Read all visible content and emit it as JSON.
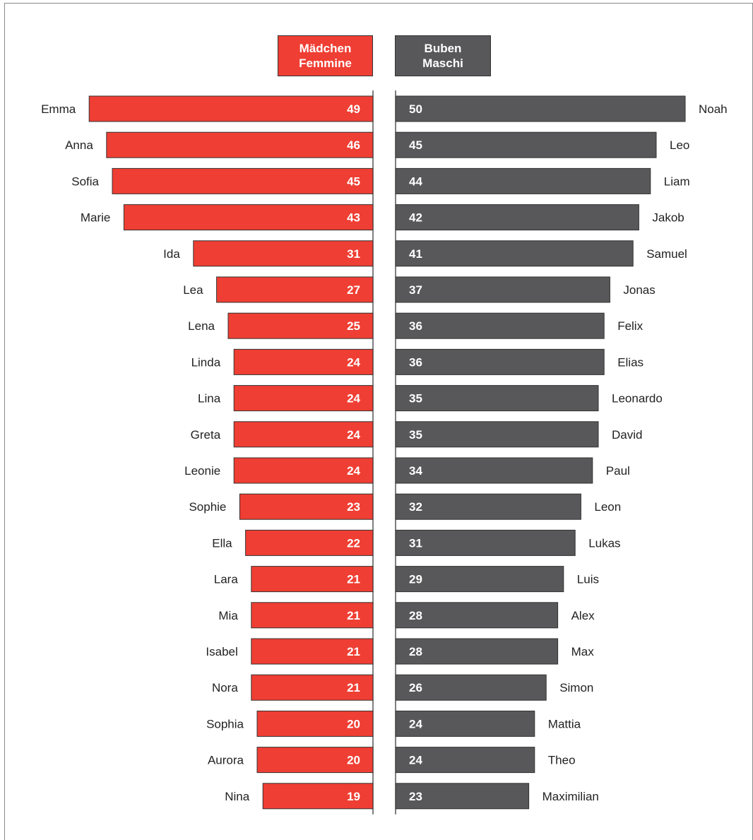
{
  "legend": {
    "girls": [
      "Mädchen",
      "Femmine"
    ],
    "boys": [
      "Buben",
      "Maschi"
    ]
  },
  "colors": {
    "girls": "#ef3e33",
    "boys": "#58585a",
    "axis": "#555555"
  },
  "chart_data": {
    "type": "bar",
    "orientation": "horizontal-butterfly",
    "series": [
      {
        "name": "Mädchen / Femmine",
        "side": "left",
        "names": [
          "Emma",
          "Anna",
          "Sofia",
          "Marie",
          "Ida",
          "Lea",
          "Lena",
          "Linda",
          "Lina",
          "Greta",
          "Leonie",
          "Sophie",
          "Ella",
          "Lara",
          "Mia",
          "Isabel",
          "Nora",
          "Sophia",
          "Aurora",
          "Nina"
        ],
        "values": [
          49,
          46,
          45,
          43,
          31,
          27,
          25,
          24,
          24,
          24,
          24,
          23,
          22,
          21,
          21,
          21,
          21,
          20,
          20,
          19
        ]
      },
      {
        "name": "Buben / Maschi",
        "side": "right",
        "names": [
          "Noah",
          "Leo",
          "Liam",
          "Jakob",
          "Samuel",
          "Jonas",
          "Felix",
          "Elias",
          "Leonardo",
          "David",
          "Paul",
          "Leon",
          "Lukas",
          "Luis",
          "Alex",
          "Max",
          "Simon",
          "Mattia",
          "Theo",
          "Maximilian"
        ],
        "values": [
          50,
          45,
          44,
          42,
          41,
          37,
          36,
          36,
          35,
          35,
          34,
          32,
          31,
          29,
          28,
          28,
          26,
          24,
          24,
          23
        ]
      }
    ],
    "grid": false,
    "legend_position": "top-center"
  }
}
